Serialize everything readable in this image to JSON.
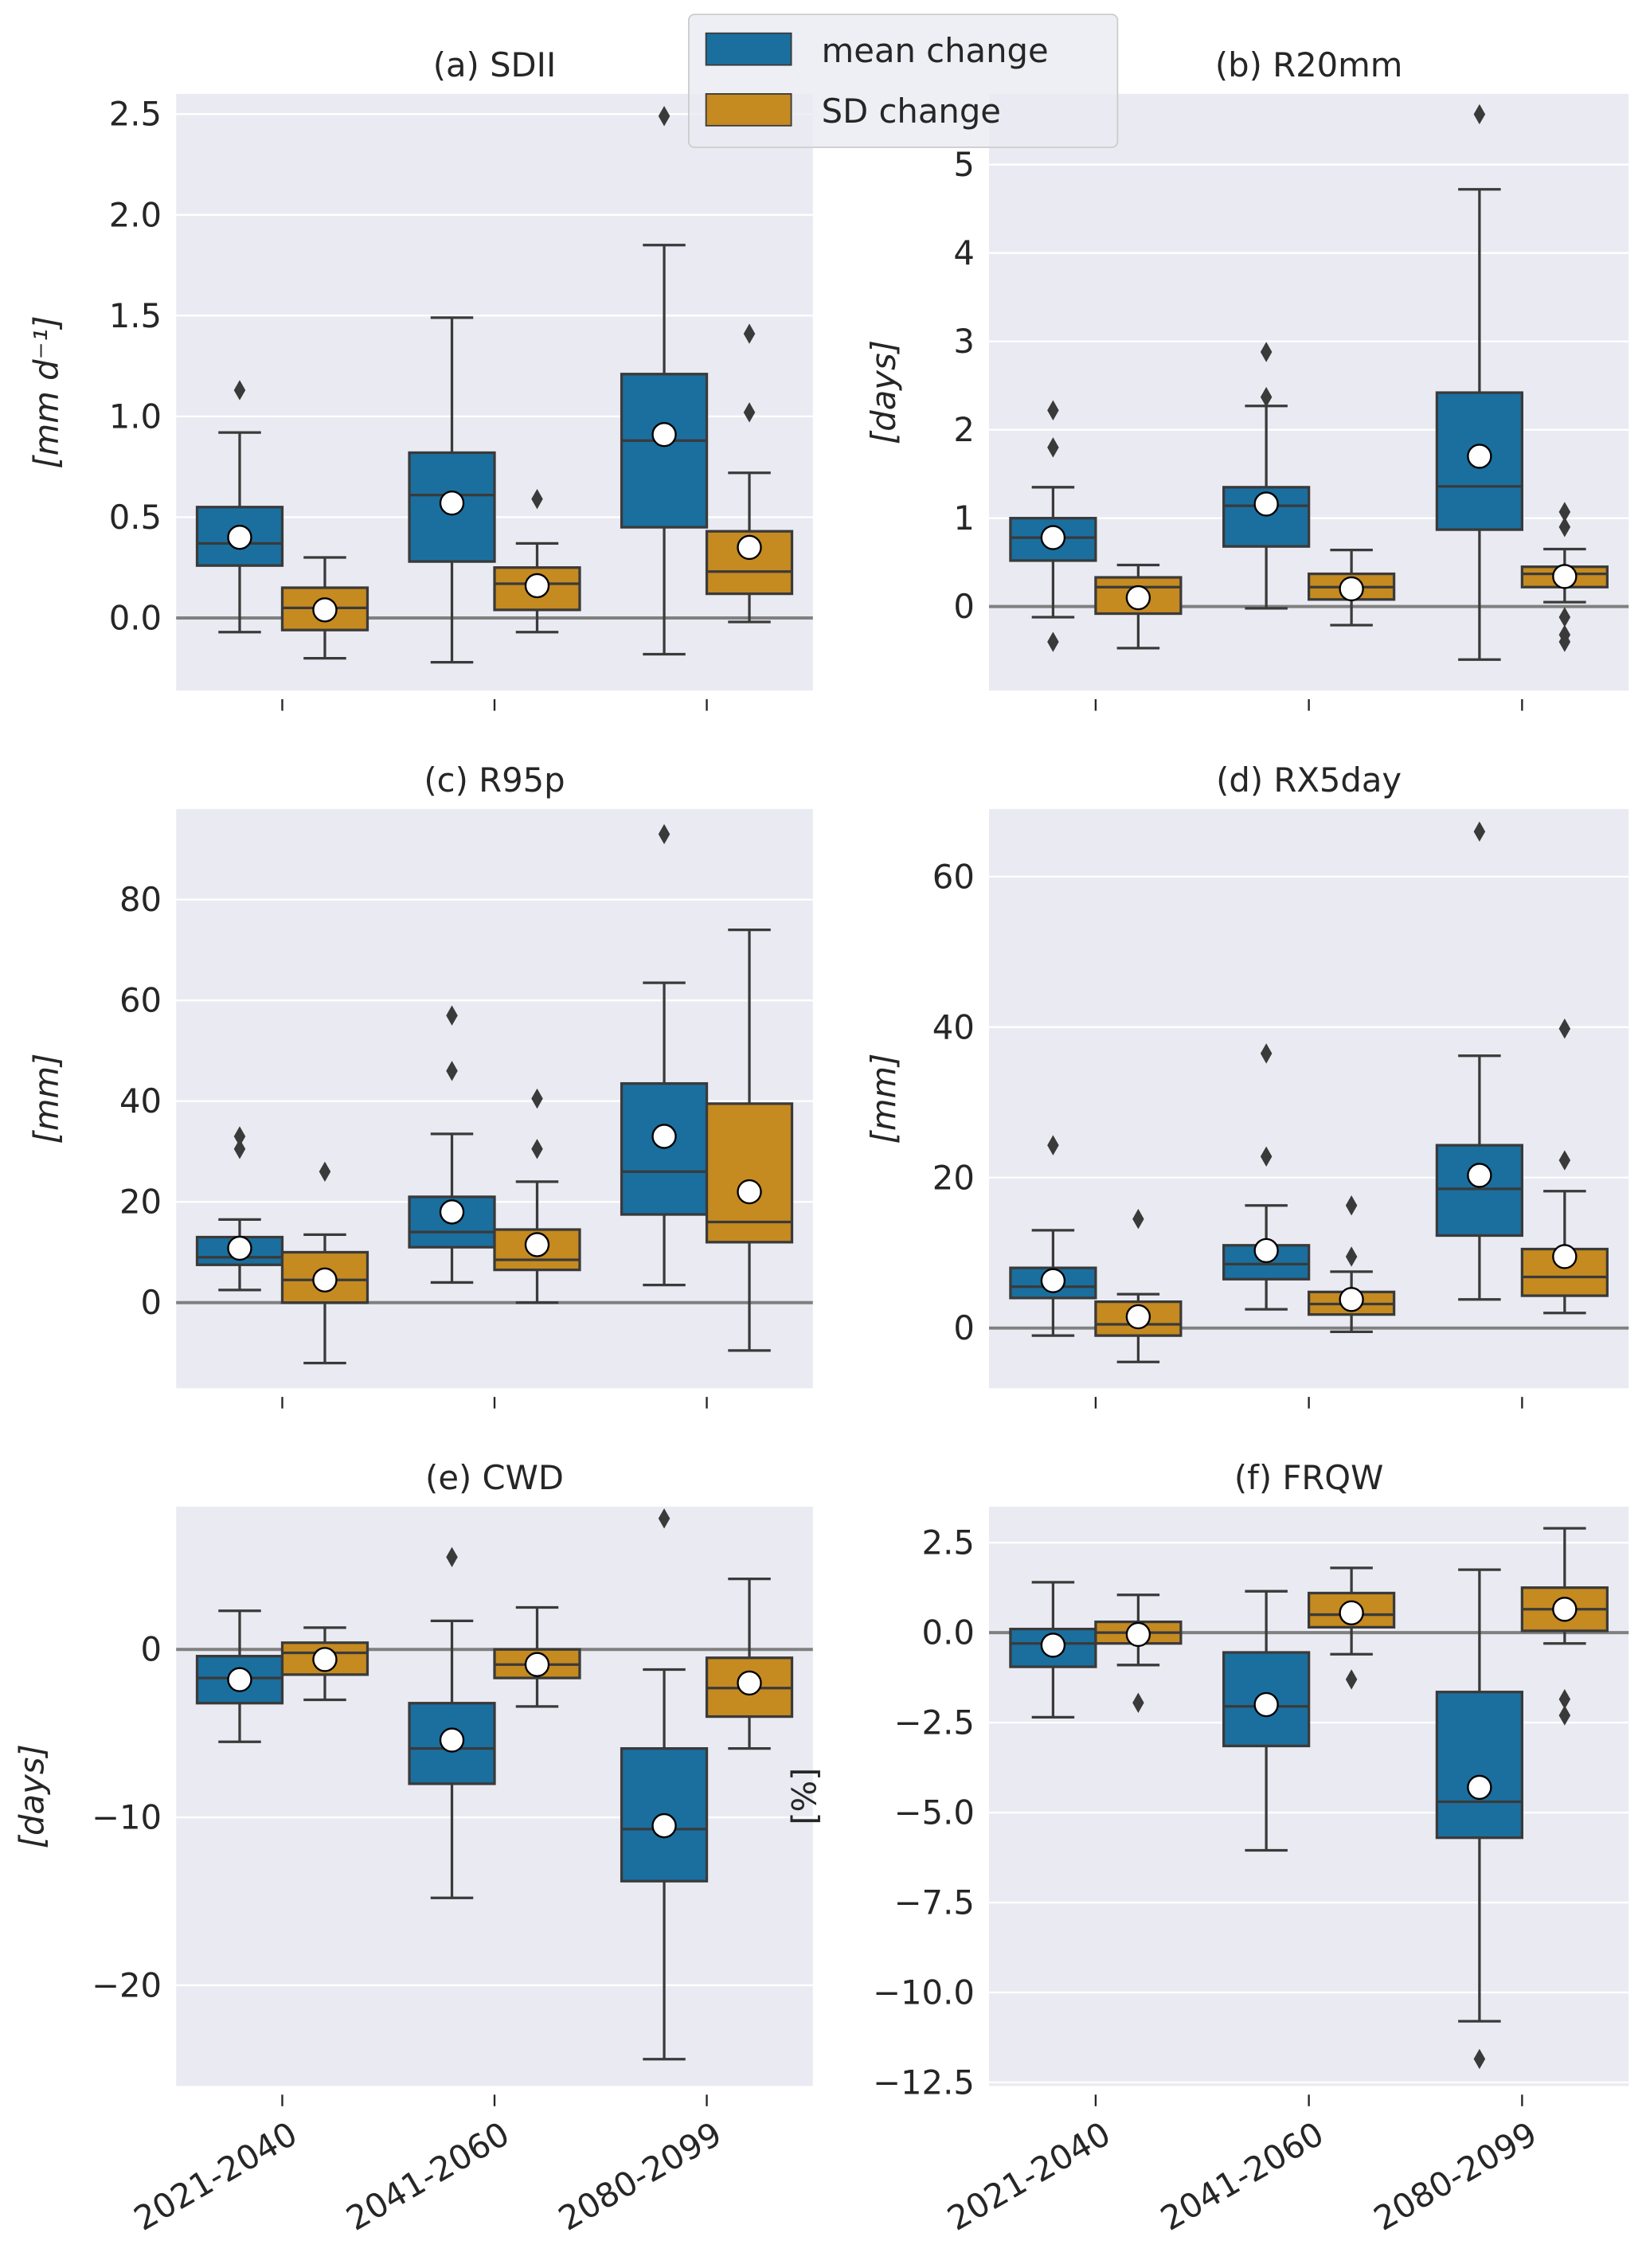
{
  "legend": {
    "entries": [
      {
        "label": "mean change",
        "color": "#1a6f9f"
      },
      {
        "label": "SD change",
        "color": "#c58a20"
      }
    ]
  },
  "colors": {
    "mean": "#1a6f9f",
    "sd": "#c58a20",
    "axes_bg": "#eaeaf2",
    "grid": "#ffffff",
    "zero_line": "#808080",
    "edge": "#3a3a3a",
    "mean_marker": "#ffffff"
  },
  "chart_data": [
    {
      "type": "box",
      "title": "(a) SDII",
      "ylabel": "[mm d⁻¹]",
      "ylabel_italic": true,
      "categories": [
        "2021-2040",
        "2041-2060",
        "2080-2099"
      ],
      "show_xticklabels": false,
      "ylim": [
        -0.36,
        2.6
      ],
      "yticks": [
        0.0,
        0.5,
        1.0,
        1.5,
        2.0,
        2.5
      ],
      "ytick_labels": [
        "0.0",
        "0.5",
        "1.0",
        "1.5",
        "2.0",
        "2.5"
      ],
      "grid": true,
      "reference_line": 0,
      "series": [
        {
          "name": "mean change",
          "boxes": [
            {
              "whislo": -0.07,
              "q1": 0.26,
              "med": 0.37,
              "q3": 0.55,
              "whishi": 0.92,
              "mean": 0.4,
              "fliers": [
                1.13
              ]
            },
            {
              "whislo": -0.22,
              "q1": 0.28,
              "med": 0.61,
              "q3": 0.82,
              "whishi": 1.49,
              "mean": 0.57,
              "fliers": []
            },
            {
              "whislo": -0.18,
              "q1": 0.45,
              "med": 0.88,
              "q3": 1.21,
              "whishi": 1.85,
              "mean": 0.91,
              "fliers": [
                2.49
              ]
            }
          ]
        },
        {
          "name": "SD change",
          "boxes": [
            {
              "whislo": -0.2,
              "q1": -0.06,
              "med": 0.05,
              "q3": 0.15,
              "whishi": 0.3,
              "mean": 0.04,
              "fliers": []
            },
            {
              "whislo": -0.07,
              "q1": 0.04,
              "med": 0.17,
              "q3": 0.25,
              "whishi": 0.37,
              "mean": 0.16,
              "fliers": [
                0.59
              ]
            },
            {
              "whislo": -0.02,
              "q1": 0.12,
              "med": 0.23,
              "q3": 0.43,
              "whishi": 0.72,
              "mean": 0.35,
              "fliers": [
                1.41,
                1.02
              ]
            }
          ]
        }
      ]
    },
    {
      "type": "box",
      "title": "(b) R20mm",
      "ylabel": "[days]",
      "ylabel_italic": true,
      "categories": [
        "2021-2040",
        "2041-2060",
        "2080-2099"
      ],
      "show_xticklabels": false,
      "ylim": [
        -0.95,
        5.8
      ],
      "yticks": [
        0,
        1,
        2,
        3,
        4,
        5
      ],
      "ytick_labels": [
        "0",
        "1",
        "2",
        "3",
        "4",
        "5"
      ],
      "grid": true,
      "reference_line": 0,
      "series": [
        {
          "name": "mean change",
          "boxes": [
            {
              "whislo": -0.12,
              "q1": 0.52,
              "med": 0.78,
              "q3": 1.0,
              "whishi": 1.35,
              "mean": 0.78,
              "fliers": [
                2.22,
                1.8,
                -0.4
              ]
            },
            {
              "whislo": -0.02,
              "q1": 0.68,
              "med": 1.14,
              "q3": 1.35,
              "whishi": 2.27,
              "mean": 1.16,
              "fliers": [
                2.88,
                2.37
              ]
            },
            {
              "whislo": -0.6,
              "q1": 0.87,
              "med": 1.36,
              "q3": 2.42,
              "whishi": 4.72,
              "mean": 1.7,
              "fliers": [
                5.57
              ]
            }
          ]
        },
        {
          "name": "SD change",
          "boxes": [
            {
              "whislo": -0.47,
              "q1": -0.08,
              "med": 0.22,
              "q3": 0.33,
              "whishi": 0.47,
              "mean": 0.1,
              "fliers": []
            },
            {
              "whislo": -0.21,
              "q1": 0.08,
              "med": 0.22,
              "q3": 0.37,
              "whishi": 0.64,
              "mean": 0.2,
              "fliers": []
            },
            {
              "whislo": 0.05,
              "q1": 0.22,
              "med": 0.37,
              "q3": 0.45,
              "whishi": 0.65,
              "mean": 0.34,
              "fliers": [
                1.07,
                0.9,
                -0.12,
                -0.32,
                -0.4
              ]
            }
          ]
        }
      ]
    },
    {
      "type": "box",
      "title": "(c) R95p",
      "ylabel": "[mm]",
      "ylabel_italic": true,
      "categories": [
        "2021-2040",
        "2041-2060",
        "2080-2099"
      ],
      "show_xticklabels": false,
      "ylim": [
        -17,
        98
      ],
      "yticks": [
        0,
        20,
        40,
        60,
        80
      ],
      "ytick_labels": [
        "0",
        "20",
        "40",
        "60",
        "80"
      ],
      "grid": true,
      "reference_line": 0,
      "series": [
        {
          "name": "mean change",
          "boxes": [
            {
              "whislo": 2.5,
              "q1": 7.5,
              "med": 9,
              "q3": 13,
              "whishi": 16.5,
              "mean": 10.8,
              "fliers": [
                33,
                30.5
              ]
            },
            {
              "whislo": 4,
              "q1": 11,
              "med": 14,
              "q3": 21,
              "whishi": 33.5,
              "mean": 18,
              "fliers": [
                57,
                46
              ]
            },
            {
              "whislo": 3.5,
              "q1": 17.5,
              "med": 26,
              "q3": 43.5,
              "whishi": 63.5,
              "mean": 33,
              "fliers": [
                93
              ]
            }
          ]
        },
        {
          "name": "SD change",
          "boxes": [
            {
              "whislo": -12,
              "q1": 0,
              "med": 4.5,
              "q3": 10,
              "whishi": 13.5,
              "mean": 4.5,
              "fliers": [
                26
              ]
            },
            {
              "whislo": 0,
              "q1": 6.5,
              "med": 8.5,
              "q3": 14.5,
              "whishi": 24,
              "mean": 11.5,
              "fliers": [
                40.5,
                30.5
              ]
            },
            {
              "whislo": -9.5,
              "q1": 12,
              "med": 16,
              "q3": 39.5,
              "whishi": 74,
              "mean": 22,
              "fliers": []
            }
          ]
        }
      ]
    },
    {
      "type": "box",
      "title": "(d) RX5day",
      "ylabel": "[mm]",
      "ylabel_italic": true,
      "categories": [
        "2021-2040",
        "2041-2060",
        "2080-2099"
      ],
      "show_xticklabels": false,
      "ylim": [
        -8,
        69
      ],
      "yticks": [
        0,
        20,
        40,
        60
      ],
      "ytick_labels": [
        "0",
        "20",
        "40",
        "60"
      ],
      "grid": true,
      "reference_line": 0,
      "series": [
        {
          "name": "mean change",
          "boxes": [
            {
              "whislo": -1,
              "q1": 4,
              "med": 5.5,
              "q3": 8,
              "whishi": 13,
              "mean": 6.3,
              "fliers": [
                24.3
              ]
            },
            {
              "whislo": 2.5,
              "q1": 6.5,
              "med": 8.5,
              "q3": 11,
              "whishi": 16.3,
              "mean": 10.3,
              "fliers": [
                36.5,
                22.8
              ]
            },
            {
              "whislo": 3.8,
              "q1": 12.3,
              "med": 18.5,
              "q3": 24.3,
              "whishi": 36.2,
              "mean": 20.3,
              "fliers": [
                66
              ]
            }
          ]
        },
        {
          "name": "SD change",
          "boxes": [
            {
              "whislo": -4.5,
              "q1": -1,
              "med": 0.5,
              "q3": 3.5,
              "whishi": 4.5,
              "mean": 1.5,
              "fliers": [
                14.5
              ]
            },
            {
              "whislo": -0.5,
              "q1": 1.8,
              "med": 3.2,
              "q3": 4.8,
              "whishi": 7.5,
              "mean": 3.8,
              "fliers": [
                16.3,
                9.5
              ]
            },
            {
              "whislo": 2,
              "q1": 4.3,
              "med": 6.8,
              "q3": 10.5,
              "whishi": 18.2,
              "mean": 9.5,
              "fliers": [
                39.8,
                22.3
              ]
            }
          ]
        }
      ]
    },
    {
      "type": "box",
      "title": "(e) CWD",
      "ylabel": "[days]",
      "ylabel_italic": true,
      "categories": [
        "2021-2040",
        "2041-2060",
        "2080-2099"
      ],
      "show_xticklabels": true,
      "ylim": [
        -26,
        8.5
      ],
      "yticks": [
        -20,
        -10,
        0
      ],
      "ytick_labels": [
        "−20",
        "−10",
        "0"
      ],
      "grid": true,
      "reference_line": 0,
      "series": [
        {
          "name": "mean change",
          "boxes": [
            {
              "whislo": -5.5,
              "q1": -3.2,
              "med": -1.7,
              "q3": -0.4,
              "whishi": 2.3,
              "mean": -1.8,
              "fliers": []
            },
            {
              "whislo": -14.8,
              "q1": -8.0,
              "med": -5.9,
              "q3": -3.2,
              "whishi": 1.7,
              "mean": -5.4,
              "fliers": [
                5.5
              ]
            },
            {
              "whislo": -24.4,
              "q1": -13.8,
              "med": -10.7,
              "q3": -5.9,
              "whishi": -1.2,
              "mean": -10.5,
              "fliers": [
                7.8
              ]
            }
          ]
        },
        {
          "name": "SD change",
          "boxes": [
            {
              "whislo": -3.0,
              "q1": -1.5,
              "med": -0.2,
              "q3": 0.4,
              "whishi": 1.3,
              "mean": -0.6,
              "fliers": []
            },
            {
              "whislo": -3.4,
              "q1": -1.7,
              "med": -0.9,
              "q3": 0.0,
              "whishi": 2.5,
              "mean": -0.9,
              "fliers": []
            },
            {
              "whislo": -5.9,
              "q1": -4.0,
              "med": -2.3,
              "q3": -0.5,
              "whishi": 4.2,
              "mean": -2.0,
              "fliers": []
            }
          ]
        }
      ]
    },
    {
      "type": "box",
      "title": "(f) FRQW",
      "ylabel": "[%]",
      "ylabel_italic": false,
      "categories": [
        "2021-2040",
        "2041-2060",
        "2080-2099"
      ],
      "show_xticklabels": true,
      "ylim": [
        -12.6,
        3.5
      ],
      "yticks": [
        -12.5,
        -10.0,
        -7.5,
        -5.0,
        -2.5,
        0.0,
        2.5
      ],
      "ytick_labels": [
        "−12.5",
        "−10.0",
        "−7.5",
        "−5.0",
        "−2.5",
        "0.0",
        "2.5"
      ],
      "grid": true,
      "reference_line": 0,
      "series": [
        {
          "name": "mean change",
          "boxes": [
            {
              "whislo": -2.35,
              "q1": -0.95,
              "med": -0.3,
              "q3": 0.1,
              "whishi": 1.4,
              "mean": -0.35,
              "fliers": []
            },
            {
              "whislo": -6.05,
              "q1": -3.15,
              "med": -2.05,
              "q3": -0.55,
              "whishi": 1.15,
              "mean": -2.0,
              "fliers": []
            },
            {
              "whislo": -10.8,
              "q1": -5.7,
              "med": -4.7,
              "q3": -1.65,
              "whishi": 1.75,
              "mean": -4.3,
              "fliers": [
                -11.85
              ]
            }
          ]
        },
        {
          "name": "SD change",
          "boxes": [
            {
              "whislo": -0.9,
              "q1": -0.3,
              "med": 0.0,
              "q3": 0.3,
              "whishi": 1.05,
              "mean": -0.05,
              "fliers": [
                -1.95
              ]
            },
            {
              "whislo": -0.6,
              "q1": 0.15,
              "med": 0.5,
              "q3": 1.1,
              "whishi": 1.8,
              "mean": 0.55,
              "fliers": [
                -1.3
              ]
            },
            {
              "whislo": -0.3,
              "q1": 0.05,
              "med": 0.65,
              "q3": 1.25,
              "whishi": 2.9,
              "mean": 0.65,
              "fliers": [
                -1.85,
                -2.3
              ]
            }
          ]
        }
      ]
    }
  ]
}
